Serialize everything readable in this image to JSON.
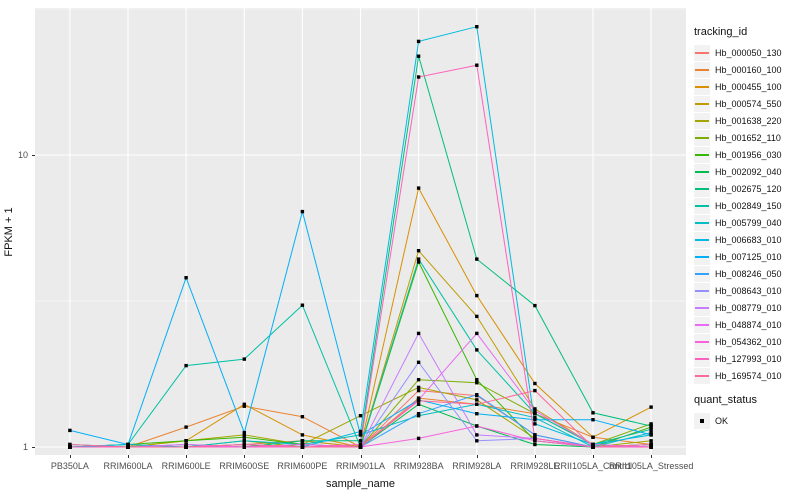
{
  "figure": {
    "y_axis_title": "FPKM + 1",
    "x_axis_title": "sample_name",
    "legend_title": "tracking_id",
    "quant_legend_title": "quant_status",
    "quant_legend_item": "OK"
  },
  "chart_data": {
    "type": "line",
    "title": "",
    "xlabel": "sample_name",
    "ylabel": "FPKM + 1",
    "y_scale": "log10",
    "ylim": [
      0.94,
      32
    ],
    "grid": "on",
    "legend_position": "right",
    "panel_bg": "#EBEBEB",
    "grid_color": "#FFFFFF",
    "point_shape": "filled-black-square",
    "point_legend_label": "OK",
    "yticks": [
      {
        "label": "1",
        "value": 1
      },
      {
        "label": "10",
        "value": 10
      }
    ],
    "y_minor_breaks": [
      3.1623,
      31.623
    ],
    "categories": [
      "PB350LA",
      "RRIM600LA",
      "RRIM600LE",
      "RRIM600SE",
      "RRIM600PE",
      "RRIM901LA",
      "RRIM928BA",
      "RRIM928LA",
      "RRIM928LE",
      "RRII105LA_Control",
      "RRII105LA_Stressed"
    ],
    "series": [
      {
        "name": "Hb_000050_130",
        "color": "#F8766D",
        "values": [
          1.0,
          1.0,
          1.0,
          1.02,
          1.05,
          1.0,
          1.56,
          1.5,
          1.1,
          1.0,
          1.0
        ]
      },
      {
        "name": "Hb_000160_100",
        "color": "#EA8331",
        "values": [
          1.0,
          1.0,
          1.17,
          1.38,
          1.27,
          1.0,
          1.47,
          1.4,
          1.3,
          1.08,
          1.02
        ]
      },
      {
        "name": "Hb_000455_100",
        "color": "#D89000",
        "values": [
          1.0,
          1.0,
          1.05,
          1.4,
          1.1,
          1.0,
          7.7,
          3.3,
          1.65,
          1.08,
          1.37
        ]
      },
      {
        "name": "Hb_000574_550",
        "color": "#C09B00",
        "values": [
          1.0,
          1.0,
          1.0,
          1.0,
          1.05,
          1.0,
          4.7,
          2.8,
          1.35,
          1.02,
          1.0
        ]
      },
      {
        "name": "Hb_001638_220",
        "color": "#A3A500",
        "values": [
          1.0,
          1.0,
          1.05,
          1.1,
          1.02,
          1.28,
          1.6,
          1.45,
          1.07,
          1.0,
          1.05
        ]
      },
      {
        "name": "Hb_001652_110",
        "color": "#7CAE00",
        "values": [
          1.0,
          1.0,
          1.0,
          1.05,
          1.0,
          1.0,
          1.7,
          1.66,
          1.3,
          1.02,
          1.2
        ]
      },
      {
        "name": "Hb_001956_030",
        "color": "#39B600",
        "values": [
          1.0,
          1.02,
          1.05,
          1.08,
          1.02,
          1.0,
          4.3,
          1.7,
          1.05,
          1.0,
          1.17
        ]
      },
      {
        "name": "Hb_002092_040",
        "color": "#00BB4E",
        "values": [
          1.0,
          1.0,
          1.0,
          1.02,
          1.0,
          1.0,
          1.4,
          1.18,
          1.02,
          1.0,
          1.02
        ]
      },
      {
        "name": "Hb_002675_120",
        "color": "#00BF7D",
        "values": [
          1.0,
          1.0,
          1.02,
          1.0,
          1.05,
          1.05,
          21.8,
          4.4,
          3.05,
          1.31,
          1.18
        ]
      },
      {
        "name": "Hb_002849_150",
        "color": "#00C1A3",
        "values": [
          1.0,
          1.02,
          1.9,
          2.0,
          3.06,
          1.0,
          4.4,
          2.15,
          1.3,
          1.02,
          1.15
        ]
      },
      {
        "name": "Hb_005799_040",
        "color": "#00BFC4",
        "values": [
          1.02,
          1.0,
          1.0,
          1.05,
          1.02,
          1.1,
          1.28,
          1.4,
          1.26,
          1.0,
          1.12
        ]
      },
      {
        "name": "Hb_006683_010",
        "color": "#00BAE0",
        "values": [
          1.0,
          1.02,
          1.0,
          1.0,
          1.0,
          1.13,
          24.5,
          27.5,
          1.2,
          1.02,
          1.1
        ]
      },
      {
        "name": "Hb_007125_010",
        "color": "#00B0F6",
        "values": [
          1.14,
          1.02,
          3.8,
          1.12,
          6.4,
          1.1,
          1.45,
          1.3,
          1.24,
          1.24,
          1.1
        ]
      },
      {
        "name": "Hb_008246_050",
        "color": "#35A2FF",
        "values": [
          1.0,
          1.0,
          1.0,
          1.0,
          1.02,
          1.0,
          1.3,
          1.51,
          1.1,
          1.0,
          1.02
        ]
      },
      {
        "name": "Hb_008643_010",
        "color": "#9590FF",
        "values": [
          1.0,
          1.0,
          1.0,
          1.0,
          1.0,
          1.0,
          1.95,
          1.05,
          1.07,
          1.0,
          1.0
        ]
      },
      {
        "name": "Hb_008779_010",
        "color": "#C77CFF",
        "values": [
          1.0,
          1.0,
          1.0,
          1.02,
          1.0,
          1.0,
          2.45,
          1.1,
          1.07,
          1.0,
          1.0
        ]
      },
      {
        "name": "Hb_048874_010",
        "color": "#E76BF3",
        "values": [
          1.0,
          1.0,
          1.02,
          1.0,
          1.0,
          1.0,
          1.45,
          2.45,
          1.33,
          1.02,
          1.0
        ]
      },
      {
        "name": "Hb_054362_010",
        "color": "#FA62DB",
        "values": [
          1.0,
          1.0,
          1.0,
          1.0,
          1.02,
          1.0,
          1.07,
          1.18,
          1.05,
          1.0,
          1.0
        ]
      },
      {
        "name": "Hb_127993_010",
        "color": "#FF62BC",
        "values": [
          1.0,
          1.0,
          1.0,
          1.0,
          1.0,
          1.02,
          18.5,
          20.3,
          1.07,
          1.0,
          1.0
        ]
      },
      {
        "name": "Hb_169574_010",
        "color": "#FF6A98",
        "values": [
          1.02,
          1.0,
          1.0,
          1.02,
          1.0,
          1.0,
          1.44,
          1.4,
          1.56,
          1.0,
          1.02
        ]
      }
    ]
  }
}
